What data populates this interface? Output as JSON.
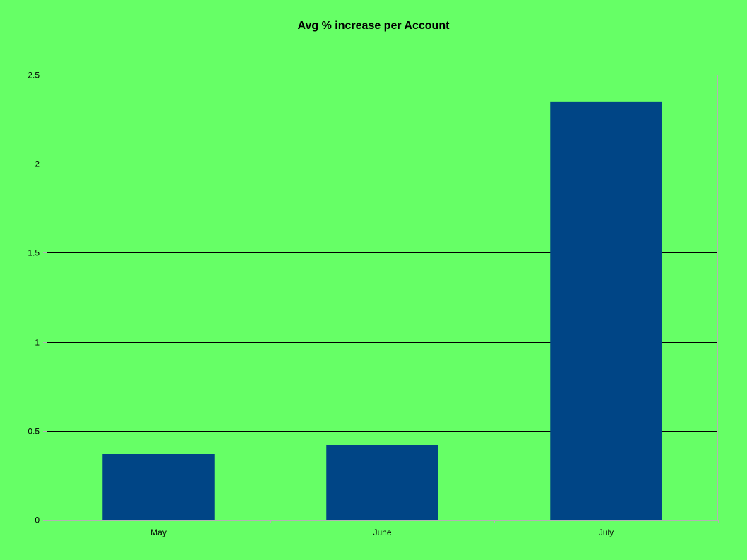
{
  "colors": {
    "background": "#66ff66",
    "bar": "#004586",
    "gridline": "#000000",
    "axis": "#b3b3b3",
    "text": "#000000"
  },
  "chart_data": {
    "type": "bar",
    "title": "Avg % increase per Account",
    "xlabel": "",
    "ylabel": "",
    "categories": [
      "May",
      "June",
      "July"
    ],
    "values": [
      0.37,
      0.42,
      2.35
    ],
    "ylim": [
      0,
      2.5
    ],
    "y_ticks": [
      0,
      0.5,
      1,
      1.5,
      2,
      2.5
    ],
    "y_tick_labels": [
      "0",
      "0.5",
      "1",
      "1.5",
      "2",
      "2.5"
    ],
    "grid": true,
    "legend": "none"
  }
}
